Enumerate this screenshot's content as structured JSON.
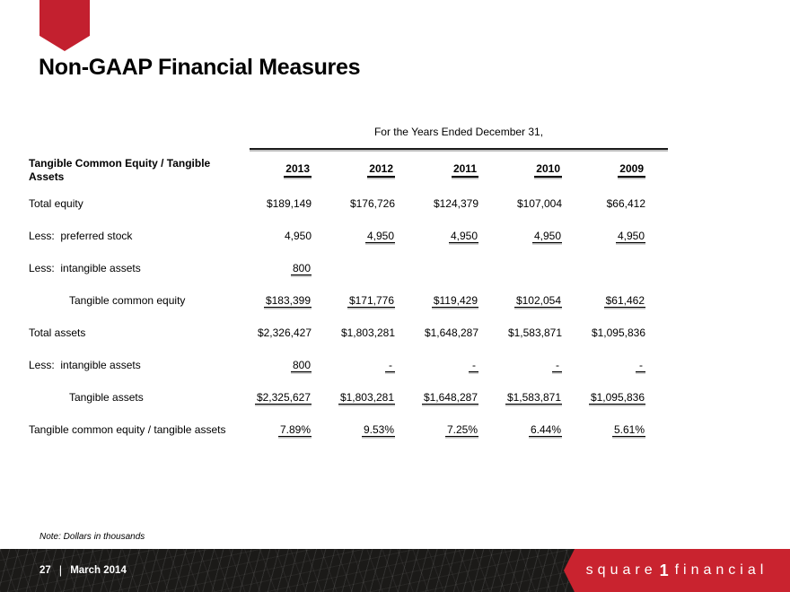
{
  "title": "Non-GAAP Financial Measures",
  "colors": {
    "bookmark_red": "#c3202f",
    "banner_red": "#c9232f",
    "footer_black": "#1b1a18"
  },
  "table": {
    "span_header": "For the Years Ended December 31,",
    "row_header": "Tangible Common Equity / Tangible Assets",
    "years": [
      "2013",
      "2012",
      "2011",
      "2010",
      "2009"
    ],
    "rows": [
      {
        "label": "Total equity",
        "indent": false,
        "cells": [
          {
            "text": "$189,149",
            "underline": false
          },
          {
            "text": "$176,726",
            "underline": false
          },
          {
            "text": "$124,379",
            "underline": false
          },
          {
            "text": "$107,004",
            "underline": false
          },
          {
            "text": "$66,412",
            "underline": false
          }
        ]
      },
      {
        "label": "Less:  preferred stock",
        "indent": false,
        "cells": [
          {
            "text": "4,950",
            "underline": false
          },
          {
            "text": "4,950",
            "underline": true
          },
          {
            "text": "4,950",
            "underline": true
          },
          {
            "text": "4,950",
            "underline": true
          },
          {
            "text": "4,950",
            "underline": true
          }
        ]
      },
      {
        "label": "Less:  intangible assets",
        "indent": false,
        "cells": [
          {
            "text": "800",
            "underline": true
          },
          {
            "text": "",
            "underline": false
          },
          {
            "text": "",
            "underline": false
          },
          {
            "text": "",
            "underline": false
          },
          {
            "text": "",
            "underline": false
          }
        ]
      },
      {
        "label": "Tangible common equity",
        "indent": true,
        "cells": [
          {
            "text": "$183,399",
            "underline": true
          },
          {
            "text": "$171,776",
            "underline": true
          },
          {
            "text": "$119,429",
            "underline": true
          },
          {
            "text": "$102,054",
            "underline": true
          },
          {
            "text": "$61,462",
            "underline": true
          }
        ]
      },
      {
        "label": "Total assets",
        "indent": false,
        "cells": [
          {
            "text": "$2,326,427",
            "underline": false
          },
          {
            "text": "$1,803,281",
            "underline": false
          },
          {
            "text": "$1,648,287",
            "underline": false
          },
          {
            "text": "$1,583,871",
            "underline": false
          },
          {
            "text": "$1,095,836",
            "underline": false
          }
        ]
      },
      {
        "label": "Less:  intangible assets",
        "indent": false,
        "cells": [
          {
            "text": "800",
            "underline": true
          },
          {
            "text": "-",
            "underline": true
          },
          {
            "text": "-",
            "underline": true
          },
          {
            "text": "-",
            "underline": true
          },
          {
            "text": "-",
            "underline": true
          }
        ]
      },
      {
        "label": "Tangible assets",
        "indent": true,
        "cells": [
          {
            "text": "$2,325,627",
            "underline": true
          },
          {
            "text": "$1,803,281",
            "underline": true
          },
          {
            "text": "$1,648,287",
            "underline": true
          },
          {
            "text": "$1,583,871",
            "underline": true
          },
          {
            "text": "$1,095,836",
            "underline": true
          }
        ]
      },
      {
        "label": "Tangible common equity / tangible assets",
        "indent": false,
        "cells": [
          {
            "text": "7.89%",
            "underline": true
          },
          {
            "text": "9.53%",
            "underline": true
          },
          {
            "text": "7.25%",
            "underline": true
          },
          {
            "text": "6.44%",
            "underline": true
          },
          {
            "text": "5.61%",
            "underline": true
          }
        ]
      }
    ]
  },
  "note": "Note: Dollars in thousands",
  "footer": {
    "page": "27",
    "separator": "|",
    "date": "March 2014",
    "logo": {
      "word1": "square",
      "numeral": "1",
      "word2": "financial"
    }
  }
}
